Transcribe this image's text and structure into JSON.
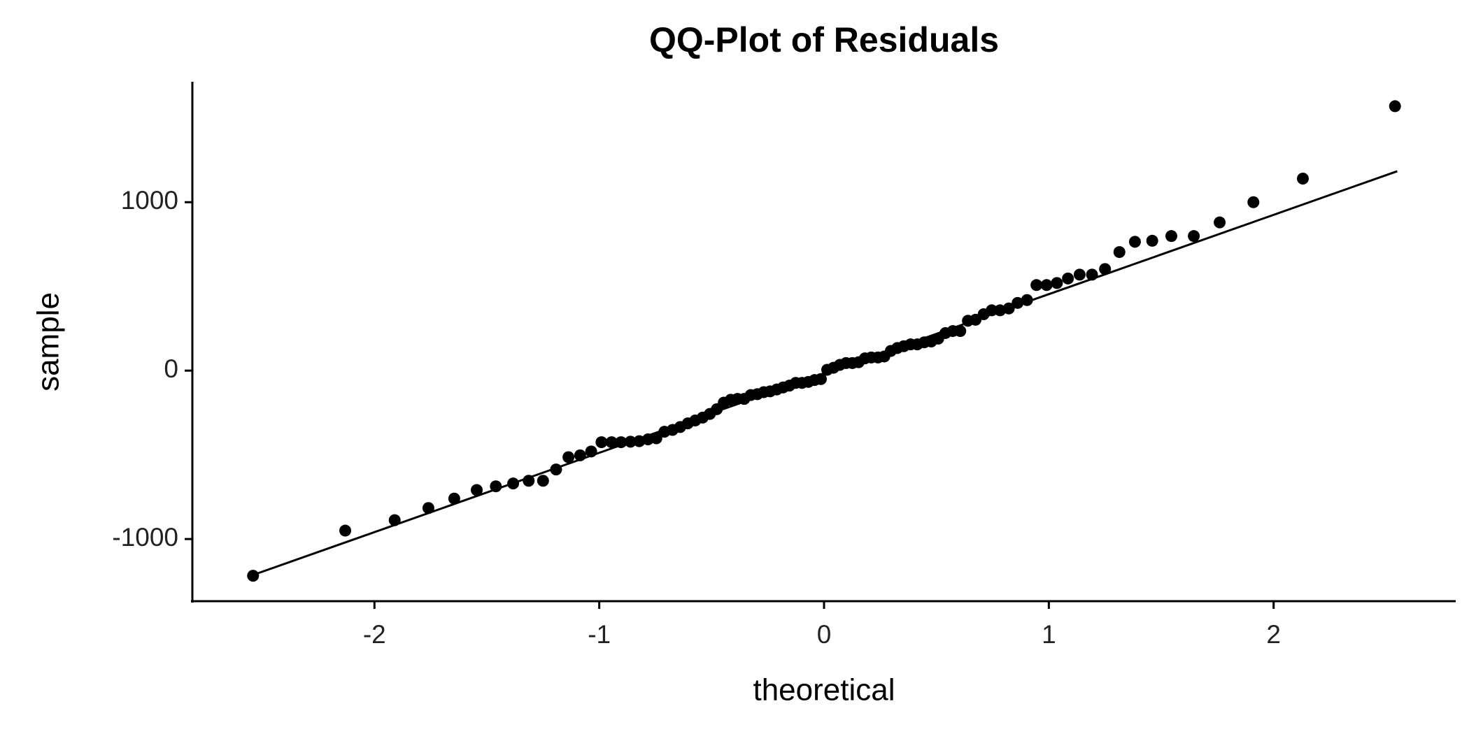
{
  "chart_data": {
    "type": "scatter",
    "title": "QQ-Plot of Residuals",
    "x_label": "theoretical",
    "y_label": "sample",
    "x": [
      -2.54,
      -2.13,
      -1.91,
      -1.76,
      -1.645,
      -1.545,
      -1.46,
      -1.383,
      -1.314,
      -1.25,
      -1.192,
      -1.137,
      -1.085,
      -1.036,
      -0.99,
      -0.945,
      -0.903,
      -0.861,
      -0.822,
      -0.783,
      -0.746,
      -0.71,
      -0.674,
      -0.64,
      -0.606,
      -0.573,
      -0.54,
      -0.508,
      -0.477,
      -0.446,
      -0.415,
      -0.385,
      -0.355,
      -0.326,
      -0.297,
      -0.268,
      -0.24,
      -0.21,
      -0.182,
      -0.154,
      -0.126,
      -0.098,
      -0.07,
      -0.042,
      -0.014,
      0.014,
      0.042,
      0.07,
      0.098,
      0.126,
      0.154,
      0.182,
      0.21,
      0.24,
      0.268,
      0.297,
      0.326,
      0.355,
      0.385,
      0.415,
      0.446,
      0.477,
      0.508,
      0.54,
      0.573,
      0.606,
      0.64,
      0.674,
      0.71,
      0.746,
      0.783,
      0.822,
      0.861,
      0.903,
      0.945,
      0.99,
      1.036,
      1.085,
      1.137,
      1.192,
      1.25,
      1.314,
      1.383,
      1.46,
      1.545,
      1.645,
      1.76,
      1.91,
      2.13,
      2.54
    ],
    "values": [
      -1218,
      -950,
      -888,
      -816,
      -760,
      -709,
      -687,
      -670,
      -654,
      -654,
      -587,
      -514,
      -503,
      -480,
      -425,
      -425,
      -425,
      -422,
      -419,
      -408,
      -402,
      -363,
      -352,
      -335,
      -313,
      -296,
      -279,
      -257,
      -229,
      -190,
      -173,
      -168,
      -168,
      -145,
      -140,
      -128,
      -123,
      -112,
      -100,
      -89,
      -73,
      -73,
      -67,
      -56,
      -50,
      5,
      17,
      34,
      45,
      45,
      50,
      73,
      78,
      78,
      84,
      117,
      134,
      145,
      156,
      156,
      168,
      173,
      190,
      223,
      235,
      235,
      296,
      302,
      335,
      358,
      358,
      369,
      402,
      419,
      508,
      508,
      520,
      547,
      570,
      570,
      603,
      704,
      765,
      771,
      799,
      799,
      880,
      1000,
      1140,
      1570
    ],
    "color": "#000000",
    "reference_line": {
      "x": [
        -2.55,
        2.55
      ],
      "y": [
        -1218,
        1184
      ],
      "color": "#000000"
    },
    "xlim": [
      -2.81,
      2.81
    ],
    "ylim": [
      -1369,
      1715
    ],
    "xticks": [
      -2,
      -1,
      0,
      1,
      2
    ],
    "yticks": [
      -1000,
      0,
      1000
    ],
    "grid": false
  }
}
